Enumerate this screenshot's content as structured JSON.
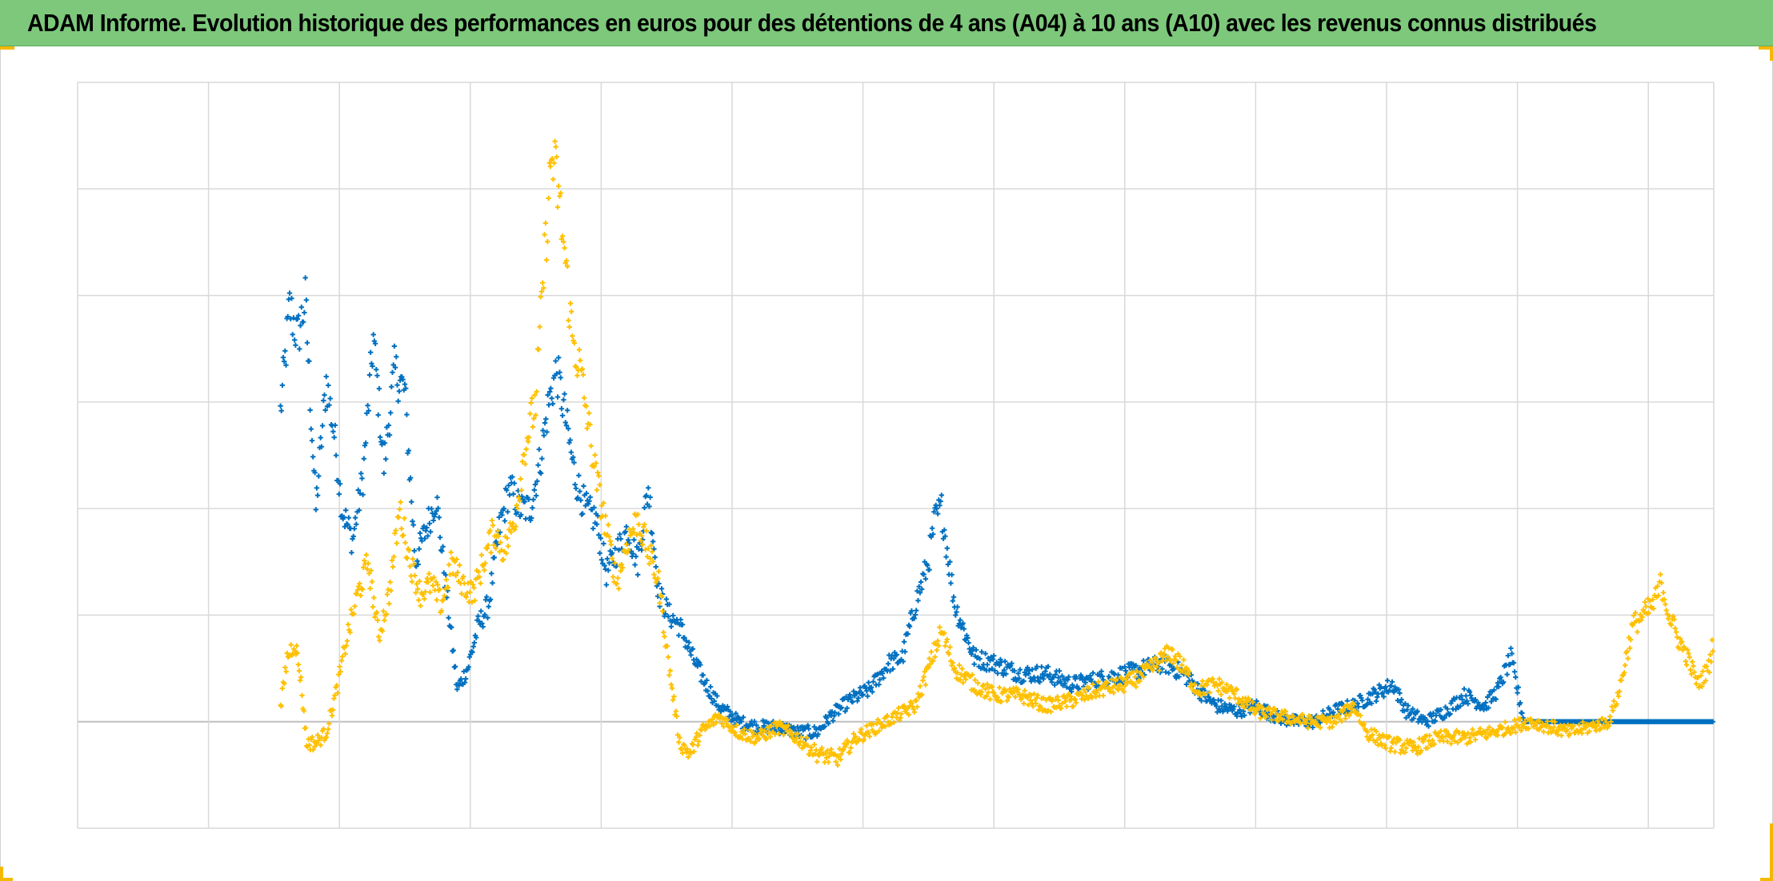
{
  "header": {
    "title": "ADAM Informe. Evolution historique des performances en euros pour des détentions de 4 ans (A04) à 10 ans (A10) avec les revenus connus distribués"
  },
  "colors": {
    "title_bg": "#7dc87b",
    "corner_accent": "#f5b800",
    "grid": "#d9d9d9",
    "zero_line": "#bfbfbf"
  },
  "chart_data": {
    "type": "scatter",
    "marker": "cross",
    "title": "ADAM Informe. Evolution historique des performances en euros pour des détentions de 4 ans (A04) à 10 ans (A10) avec les revenus connus distribués",
    "xlabel": "",
    "ylabel": "",
    "tick_labels_visible": false,
    "grid": true,
    "legend": "none",
    "xlim": [
      0,
      12.5
    ],
    "ylim": [
      -1,
      6
    ],
    "x_gridlines": 12,
    "y_gridlines": [
      -1,
      0,
      1,
      2,
      3,
      4,
      5,
      6
    ],
    "series": [
      {
        "color": "#0070c0",
        "anchors": [
          [
            1.55,
            2.9
          ],
          [
            1.62,
            3.9
          ],
          [
            1.68,
            3.6
          ],
          [
            1.74,
            3.95
          ],
          [
            1.82,
            2.0
          ],
          [
            1.9,
            3.2
          ],
          [
            1.96,
            2.7
          ],
          [
            2.02,
            2.0
          ],
          [
            2.1,
            1.7
          ],
          [
            2.18,
            2.3
          ],
          [
            2.26,
            3.6
          ],
          [
            2.34,
            2.4
          ],
          [
            2.42,
            3.3
          ],
          [
            2.5,
            3.1
          ],
          [
            2.58,
            1.5
          ],
          [
            2.66,
            1.8
          ],
          [
            2.74,
            2.1
          ],
          [
            2.82,
            1.2
          ],
          [
            2.9,
            0.3
          ],
          [
            2.98,
            0.5
          ],
          [
            3.06,
            0.9
          ],
          [
            3.14,
            1.1
          ],
          [
            3.22,
            1.8
          ],
          [
            3.3,
            2.2
          ],
          [
            3.38,
            2.0
          ],
          [
            3.46,
            2.0
          ],
          [
            3.54,
            2.5
          ],
          [
            3.6,
            3.0
          ],
          [
            3.66,
            3.3
          ],
          [
            3.72,
            2.9
          ],
          [
            3.8,
            2.3
          ],
          [
            3.88,
            2.0
          ],
          [
            3.96,
            1.9
          ],
          [
            4.04,
            1.4
          ],
          [
            4.12,
            1.6
          ],
          [
            4.2,
            1.8
          ],
          [
            4.28,
            1.5
          ],
          [
            4.36,
            2.2
          ],
          [
            4.44,
            1.2
          ],
          [
            4.52,
            1.0
          ],
          [
            4.6,
            0.9
          ],
          [
            4.7,
            0.6
          ],
          [
            4.8,
            0.35
          ],
          [
            4.9,
            0.15
          ],
          [
            5.05,
            0.0
          ],
          [
            5.2,
            -0.05
          ],
          [
            5.35,
            -0.05
          ],
          [
            5.5,
            -0.1
          ],
          [
            5.65,
            -0.1
          ],
          [
            5.75,
            0.05
          ],
          [
            5.9,
            0.2
          ],
          [
            6.05,
            0.3
          ],
          [
            6.2,
            0.55
          ],
          [
            6.3,
            0.6
          ],
          [
            6.4,
            1.1
          ],
          [
            6.5,
            1.5
          ],
          [
            6.55,
            1.9
          ],
          [
            6.6,
            2.0
          ],
          [
            6.7,
            1.1
          ],
          [
            6.85,
            0.6
          ],
          [
            7.0,
            0.55
          ],
          [
            7.2,
            0.45
          ],
          [
            7.4,
            0.45
          ],
          [
            7.6,
            0.35
          ],
          [
            7.8,
            0.4
          ],
          [
            8.0,
            0.45
          ],
          [
            8.15,
            0.5
          ],
          [
            8.3,
            0.55
          ],
          [
            8.45,
            0.45
          ],
          [
            8.6,
            0.25
          ],
          [
            8.7,
            0.15
          ],
          [
            8.85,
            0.1
          ],
          [
            9.0,
            0.15
          ],
          [
            9.15,
            0.05
          ],
          [
            9.3,
            0.0
          ],
          [
            9.45,
            0.0
          ],
          [
            9.6,
            0.1
          ],
          [
            9.75,
            0.15
          ],
          [
            9.9,
            0.25
          ],
          [
            10.05,
            0.35
          ],
          [
            10.15,
            0.1
          ],
          [
            10.3,
            0.0
          ],
          [
            10.45,
            0.1
          ],
          [
            10.6,
            0.25
          ],
          [
            10.75,
            0.15
          ],
          [
            10.85,
            0.3
          ],
          [
            10.95,
            0.6
          ],
          [
            11.05,
            0.0
          ],
          [
            12.5,
            0.0
          ]
        ]
      },
      {
        "color": "#ffc000",
        "anchors": [
          [
            1.55,
            0.1
          ],
          [
            1.6,
            0.6
          ],
          [
            1.66,
            0.75
          ],
          [
            1.7,
            0.45
          ],
          [
            1.75,
            -0.2
          ],
          [
            1.82,
            -0.2
          ],
          [
            1.9,
            -0.1
          ],
          [
            1.98,
            0.3
          ],
          [
            2.06,
            0.8
          ],
          [
            2.14,
            1.2
          ],
          [
            2.22,
            1.5
          ],
          [
            2.3,
            0.8
          ],
          [
            2.38,
            1.2
          ],
          [
            2.46,
            2.0
          ],
          [
            2.54,
            1.5
          ],
          [
            2.62,
            1.2
          ],
          [
            2.7,
            1.3
          ],
          [
            2.78,
            1.1
          ],
          [
            2.86,
            1.5
          ],
          [
            2.94,
            1.3
          ],
          [
            3.02,
            1.2
          ],
          [
            3.1,
            1.5
          ],
          [
            3.18,
            1.8
          ],
          [
            3.26,
            1.6
          ],
          [
            3.34,
            1.9
          ],
          [
            3.42,
            2.6
          ],
          [
            3.5,
            3.0
          ],
          [
            3.56,
            4.2
          ],
          [
            3.62,
            5.3
          ],
          [
            3.66,
            5.1
          ],
          [
            3.72,
            4.4
          ],
          [
            3.78,
            3.6
          ],
          [
            3.84,
            3.3
          ],
          [
            3.9,
            2.8
          ],
          [
            3.96,
            2.3
          ],
          [
            4.04,
            1.8
          ],
          [
            4.12,
            1.3
          ],
          [
            4.2,
            1.7
          ],
          [
            4.28,
            1.9
          ],
          [
            4.36,
            1.6
          ],
          [
            4.44,
            1.3
          ],
          [
            4.52,
            0.5
          ],
          [
            4.6,
            -0.2
          ],
          [
            4.68,
            -0.3
          ],
          [
            4.76,
            -0.1
          ],
          [
            4.9,
            0.05
          ],
          [
            5.05,
            -0.1
          ],
          [
            5.2,
            -0.15
          ],
          [
            5.35,
            -0.05
          ],
          [
            5.5,
            -0.15
          ],
          [
            5.65,
            -0.3
          ],
          [
            5.8,
            -0.35
          ],
          [
            5.95,
            -0.15
          ],
          [
            6.1,
            -0.05
          ],
          [
            6.25,
            0.05
          ],
          [
            6.4,
            0.15
          ],
          [
            6.5,
            0.5
          ],
          [
            6.6,
            0.85
          ],
          [
            6.7,
            0.5
          ],
          [
            6.85,
            0.35
          ],
          [
            7.0,
            0.25
          ],
          [
            7.2,
            0.25
          ],
          [
            7.4,
            0.15
          ],
          [
            7.6,
            0.2
          ],
          [
            7.8,
            0.3
          ],
          [
            8.0,
            0.35
          ],
          [
            8.15,
            0.45
          ],
          [
            8.25,
            0.55
          ],
          [
            8.35,
            0.65
          ],
          [
            8.45,
            0.5
          ],
          [
            8.55,
            0.3
          ],
          [
            8.7,
            0.35
          ],
          [
            8.85,
            0.25
          ],
          [
            9.0,
            0.1
          ],
          [
            9.2,
            0.05
          ],
          [
            9.4,
            0.0
          ],
          [
            9.6,
            0.0
          ],
          [
            9.75,
            0.15
          ],
          [
            9.85,
            -0.1
          ],
          [
            10.0,
            -0.2
          ],
          [
            10.2,
            -0.25
          ],
          [
            10.4,
            -0.15
          ],
          [
            10.6,
            -0.15
          ],
          [
            10.8,
            -0.1
          ],
          [
            10.95,
            -0.05
          ],
          [
            11.1,
            0.0
          ],
          [
            11.25,
            -0.05
          ],
          [
            11.4,
            -0.1
          ],
          [
            11.55,
            -0.05
          ],
          [
            11.7,
            0.0
          ],
          [
            11.78,
            0.3
          ],
          [
            11.88,
            0.9
          ],
          [
            11.96,
            1.0
          ],
          [
            12.04,
            1.1
          ],
          [
            12.1,
            1.3
          ],
          [
            12.16,
            1.0
          ],
          [
            12.22,
            0.8
          ],
          [
            12.3,
            0.6
          ],
          [
            12.38,
            0.35
          ],
          [
            12.46,
            0.5
          ],
          [
            12.5,
            0.8
          ]
        ]
      }
    ]
  }
}
